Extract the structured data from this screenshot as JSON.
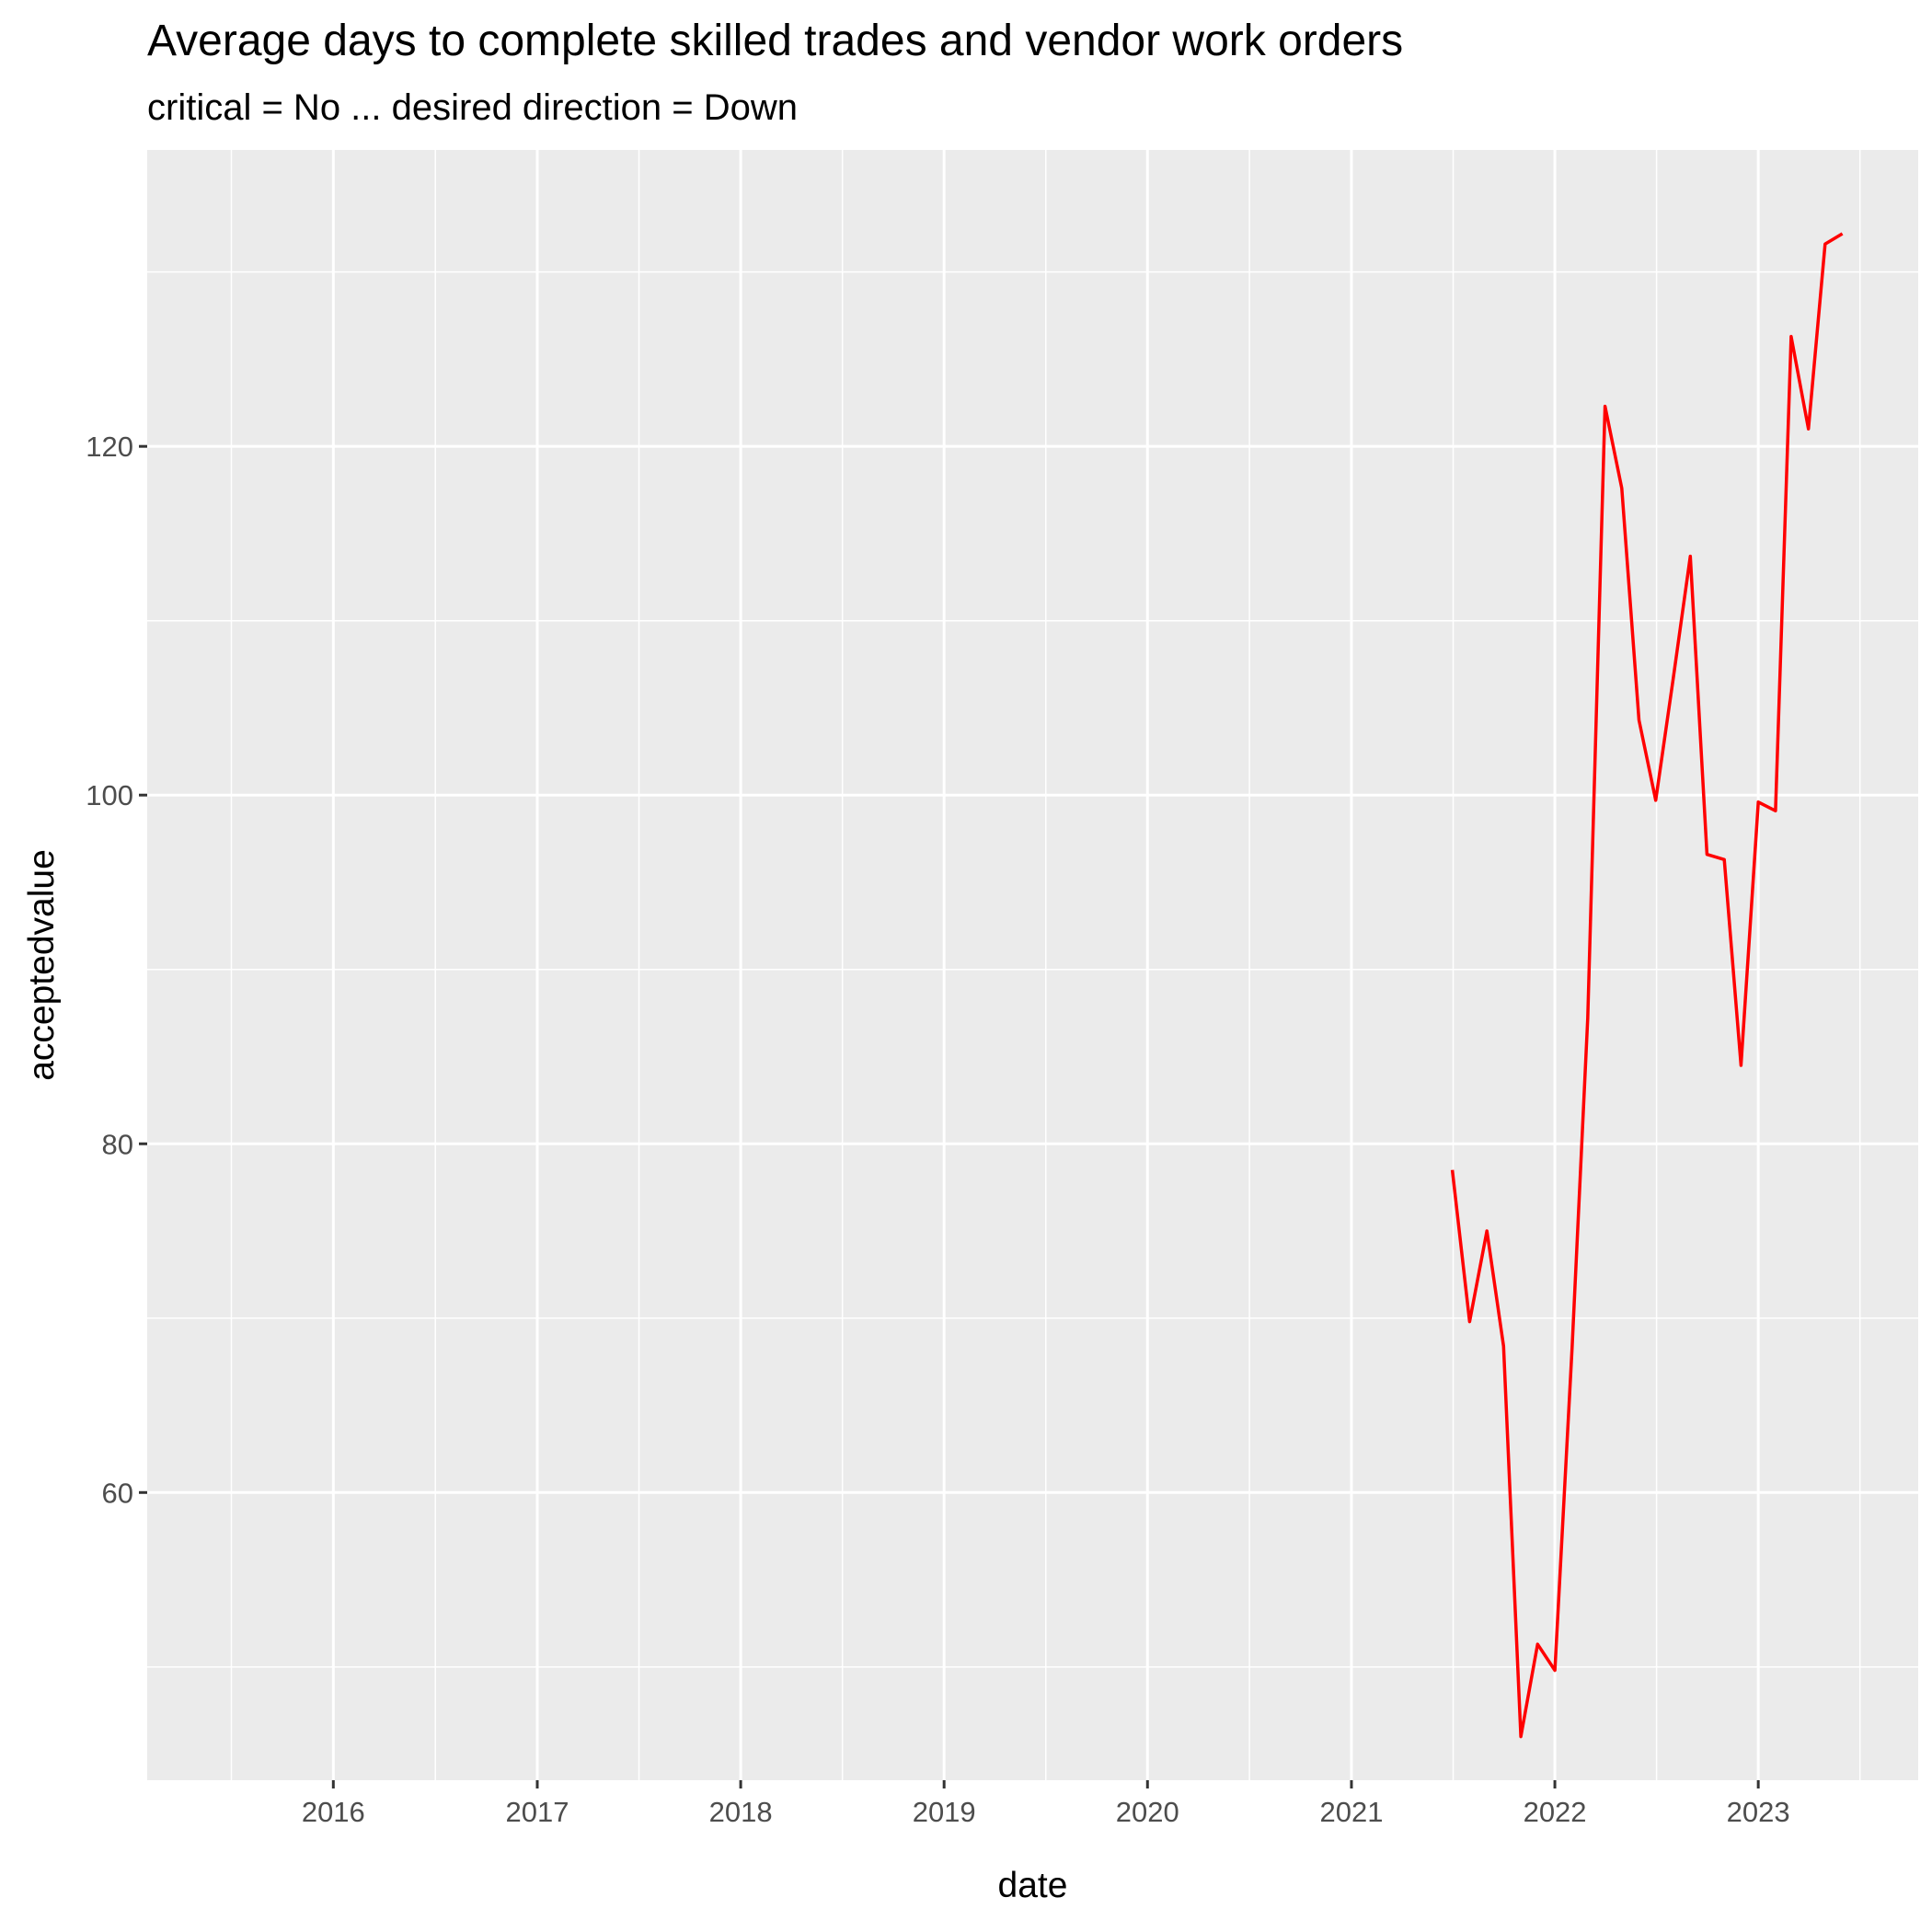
{
  "title": "Average days to complete skilled trades and vendor work orders",
  "subtitle": "critical = No ... desired direction = Down",
  "chart_data": {
    "type": "line",
    "xlabel": "date",
    "ylabel": "acceptedvalue",
    "x_axis_type": "date",
    "xlim": [
      "2015-02-01",
      "2023-10-15"
    ],
    "ylim": [
      43.5,
      137.0
    ],
    "x_ticks": [
      {
        "date": "2016-01-01",
        "label": "2016"
      },
      {
        "date": "2017-01-01",
        "label": "2017"
      },
      {
        "date": "2018-01-01",
        "label": "2018"
      },
      {
        "date": "2019-01-01",
        "label": "2019"
      },
      {
        "date": "2020-01-01",
        "label": "2020"
      },
      {
        "date": "2021-01-01",
        "label": "2021"
      },
      {
        "date": "2022-01-01",
        "label": "2022"
      },
      {
        "date": "2023-01-01",
        "label": "2023"
      }
    ],
    "y_ticks": [
      60,
      80,
      100,
      120
    ],
    "grid": true,
    "series": [
      {
        "color": "#ff0000",
        "points": [
          {
            "x": "2021-07-01",
            "y": 78.5
          },
          {
            "x": "2021-08-01",
            "y": 69.8
          },
          {
            "x": "2021-09-01",
            "y": 75.0
          },
          {
            "x": "2021-10-01",
            "y": 68.4
          },
          {
            "x": "2021-11-01",
            "y": 46.0
          },
          {
            "x": "2021-12-01",
            "y": 51.3
          },
          {
            "x": "2022-01-01",
            "y": 49.8
          },
          {
            "x": "2022-02-01",
            "y": 68.3
          },
          {
            "x": "2022-03-01",
            "y": 87.2
          },
          {
            "x": "2022-04-01",
            "y": 122.3
          },
          {
            "x": "2022-05-01",
            "y": 117.6
          },
          {
            "x": "2022-06-01",
            "y": 104.3
          },
          {
            "x": "2022-07-01",
            "y": 99.7
          },
          {
            "x": "2022-08-01",
            "y": 106.6
          },
          {
            "x": "2022-09-01",
            "y": 113.7
          },
          {
            "x": "2022-10-01",
            "y": 96.6
          },
          {
            "x": "2022-11-01",
            "y": 96.3
          },
          {
            "x": "2022-12-01",
            "y": 84.5
          },
          {
            "x": "2023-01-01",
            "y": 99.6
          },
          {
            "x": "2023-02-01",
            "y": 99.1
          },
          {
            "x": "2023-03-01",
            "y": 126.3
          },
          {
            "x": "2023-04-01",
            "y": 121.0
          },
          {
            "x": "2023-05-01",
            "y": 131.6
          },
          {
            "x": "2023-06-01",
            "y": 132.2
          }
        ]
      }
    ]
  },
  "colors": {
    "panel_background": "#ebebeb",
    "grid_major": "#ffffff",
    "grid_minor": "#ffffff",
    "line": "#ff0000",
    "tick_text": "#4d4d4d",
    "tick_mark": "#333333"
  }
}
